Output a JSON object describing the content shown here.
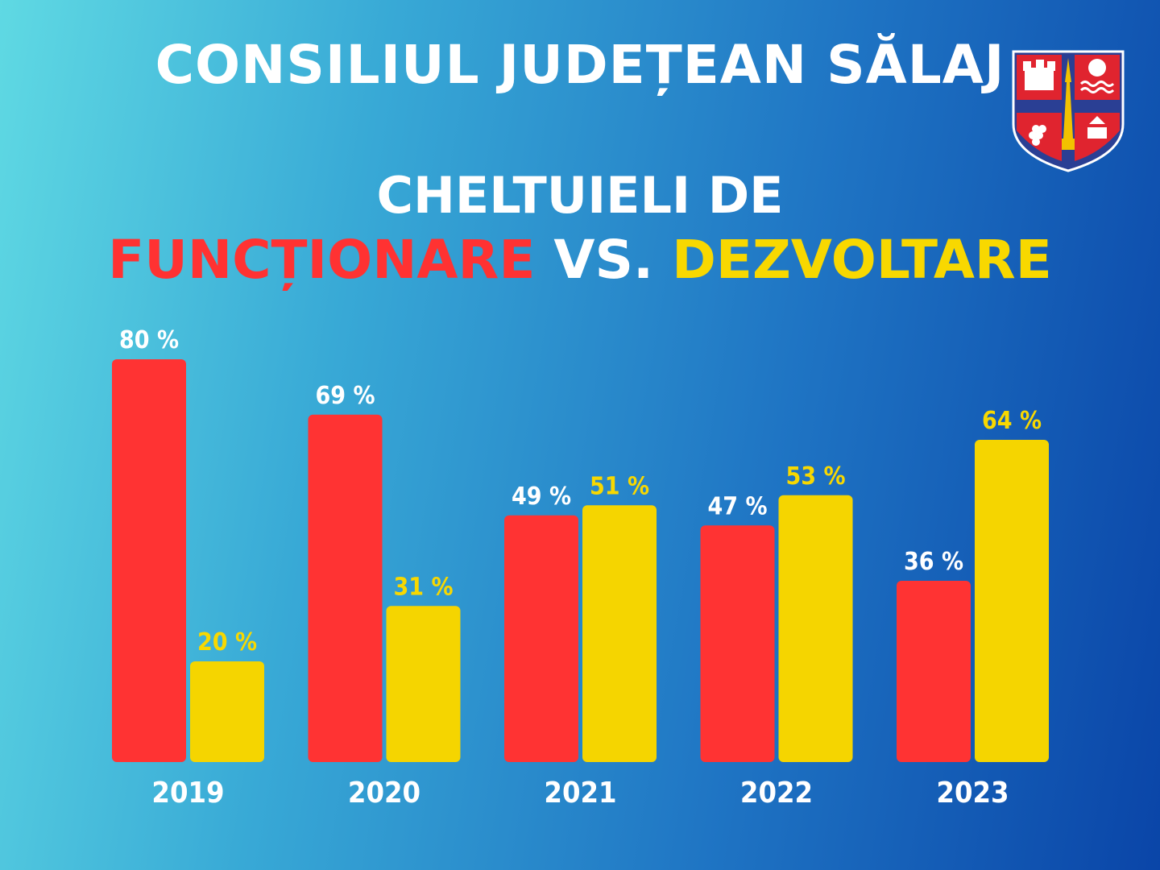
{
  "header": {
    "title": "CONSILIUL JUDEȚEAN SĂLAJ",
    "subtitle_line1": "CHELTUIELI DE",
    "subtitle_word_red": "FUNCȚIONARE",
    "subtitle_word_mid": "VS.",
    "subtitle_word_yellow": "DEZVOLTARE"
  },
  "logo": {
    "icon": "county-coat-of-arms-icon"
  },
  "colors": {
    "functionare": "#ff3333",
    "dezvoltare": "#f5d500",
    "label_functionare": "#ffffff",
    "label_dezvoltare": "#f8d800"
  },
  "chart_data": {
    "type": "bar",
    "categories": [
      "2019",
      "2020",
      "2021",
      "2022",
      "2023"
    ],
    "series": [
      {
        "values": [
          80,
          69,
          49,
          47,
          36
        ],
        "labels": [
          "80 %",
          "69 %",
          "49 %",
          "47 %",
          "36 %"
        ]
      },
      {
        "values": [
          20,
          31,
          51,
          53,
          64
        ],
        "labels": [
          "20 %",
          "31 %",
          "51 %",
          "53 %",
          "64 %"
        ]
      }
    ],
    "ylim": [
      0,
      100
    ],
    "grid": false,
    "legend": "none"
  }
}
